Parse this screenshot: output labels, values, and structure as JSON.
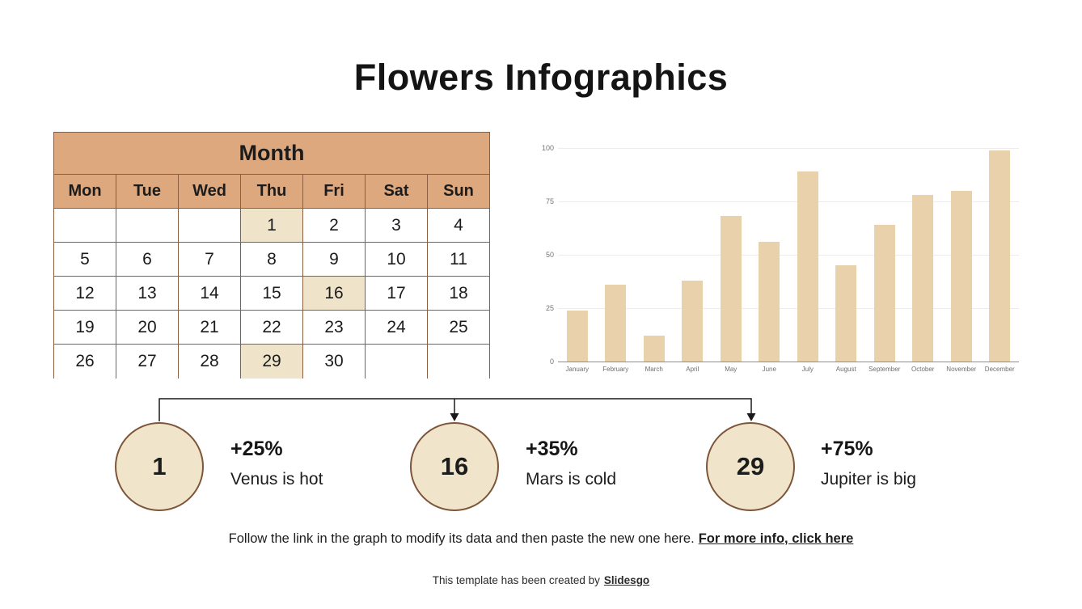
{
  "title": "Flowers Infographics",
  "calendar": {
    "month_label": "Month",
    "day_headers": [
      "Mon",
      "Tue",
      "Wed",
      "Thu",
      "Fri",
      "Sat",
      "Sun"
    ],
    "weeks": [
      [
        "",
        "",
        "",
        "1",
        "2",
        "3",
        "4"
      ],
      [
        "5",
        "6",
        "7",
        "8",
        "9",
        "10",
        "11"
      ],
      [
        "12",
        "13",
        "14",
        "15",
        "16",
        "17",
        "18"
      ],
      [
        "19",
        "20",
        "21",
        "22",
        "23",
        "24",
        "25"
      ],
      [
        "26",
        "27",
        "28",
        "29",
        "30",
        "",
        ""
      ]
    ],
    "highlighted_days": [
      "1",
      "16",
      "29"
    ]
  },
  "chart_data": {
    "type": "bar",
    "categories": [
      "January",
      "February",
      "March",
      "April",
      "May",
      "June",
      "July",
      "August",
      "September",
      "October",
      "November",
      "December"
    ],
    "values": [
      24,
      36,
      12,
      38,
      68,
      56,
      89,
      45,
      64,
      78,
      80,
      99
    ],
    "title": "",
    "xlabel": "",
    "ylabel": "",
    "ylim": [
      0,
      100
    ],
    "yticks": [
      0,
      25,
      50,
      75,
      100
    ],
    "grid": true,
    "legend": false,
    "bar_color": "#e9d1ac"
  },
  "milestones": [
    {
      "day": "1",
      "percent": "+25%",
      "label": "Venus is hot"
    },
    {
      "day": "16",
      "percent": "+35%",
      "label": "Mars is cold"
    },
    {
      "day": "29",
      "percent": "+75%",
      "label": "Jupiter is big"
    }
  ],
  "footer": {
    "note": "Follow the link in the graph to modify its data and then paste the new one here.",
    "link_label": "For more info, click here"
  },
  "credits": {
    "text": "This template has been created by",
    "link_label": "Slidesgo"
  },
  "colors": {
    "header_tan": "#dda87e",
    "bar_tan": "#e9d1ac",
    "highlight_cream": "#efe4c9",
    "circle_cream": "#f0e5ca",
    "border_brown": "#8a5f41",
    "text_black": "#1c1c1c",
    "chart_label_gray": "#757575"
  }
}
